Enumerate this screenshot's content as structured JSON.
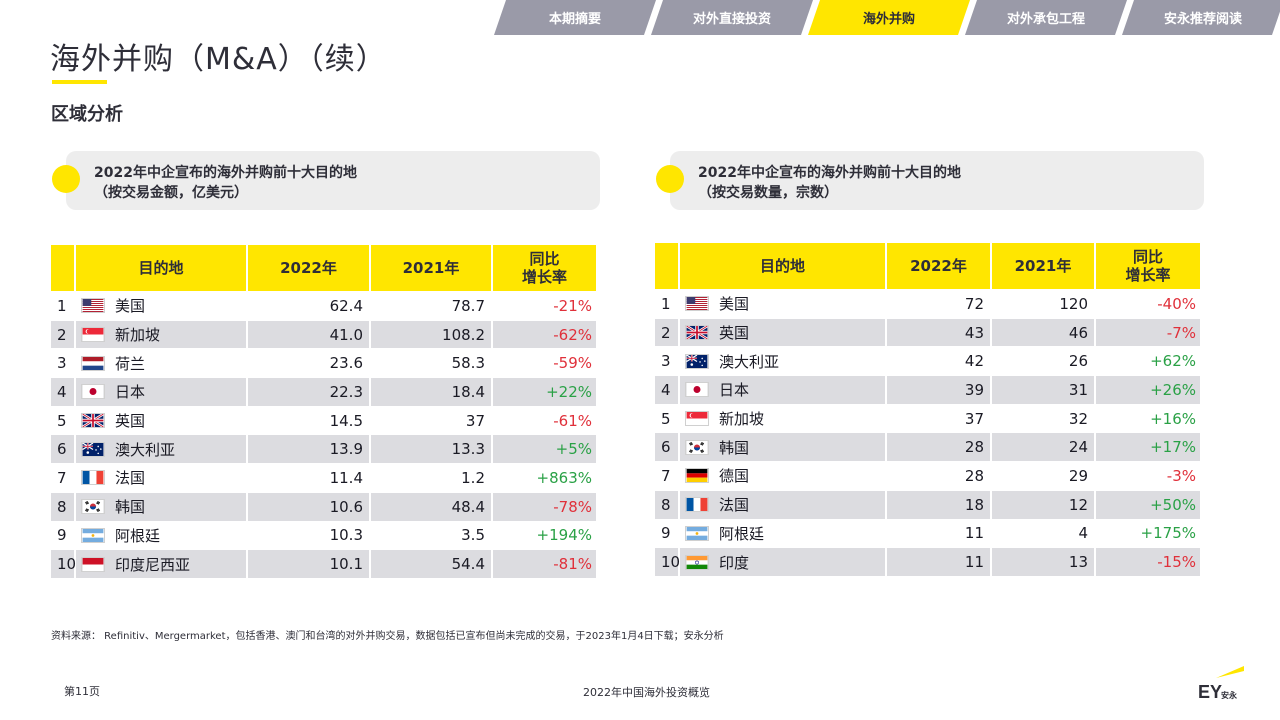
{
  "nav": {
    "tabs": [
      {
        "label": "本期摘要",
        "active": false
      },
      {
        "label": "对外直接投资",
        "active": false
      },
      {
        "label": "海外并购",
        "active": true
      },
      {
        "label": "对外承包工程",
        "active": false
      },
      {
        "label": "安永推荐阅读",
        "active": false
      }
    ]
  },
  "page": {
    "title": "海外并购（M&A）（续）",
    "section": "区域分析",
    "source": "资料来源： Refinitiv、Mergermarket，包括香港、澳门和台湾的对外并购交易，数据包括已宣布但尚未完成的交易，于2023年1月4日下载；安永分析",
    "page_number": "第11页",
    "footer_title": "2022年中国海外投资概览",
    "logo_text": "EY",
    "logo_subtext": "安永"
  },
  "colors": {
    "accent": "#ffe600",
    "positive": "#2aa146",
    "negative": "#e0303a",
    "row_alt": "#dcdce0"
  },
  "left": {
    "card_line1": "2022年中企宣布的海外并购前十大目的地",
    "card_line2": "（按交易金额，亿美元）",
    "headers": {
      "dest": "目的地",
      "y2022": "2022年",
      "y2021": "2021年",
      "growth_l1": "同比",
      "growth_l2": "增长率"
    },
    "rows": [
      {
        "rank": "1",
        "flag": "us",
        "name": "美国",
        "v2022": "62.4",
        "v2021": "78.7",
        "growth": "-21%"
      },
      {
        "rank": "2",
        "flag": "sg",
        "name": "新加坡",
        "v2022": "41.0",
        "v2021": "108.2",
        "growth": "-62%"
      },
      {
        "rank": "3",
        "flag": "nl",
        "name": "荷兰",
        "v2022": "23.6",
        "v2021": "58.3",
        "growth": "-59%"
      },
      {
        "rank": "4",
        "flag": "jp",
        "name": "日本",
        "v2022": "22.3",
        "v2021": "18.4",
        "growth": "+22%"
      },
      {
        "rank": "5",
        "flag": "gb",
        "name": "英国",
        "v2022": "14.5",
        "v2021": "37",
        "growth": "-61%"
      },
      {
        "rank": "6",
        "flag": "au",
        "name": "澳大利亚",
        "v2022": "13.9",
        "v2021": "13.3",
        "growth": "+5%"
      },
      {
        "rank": "7",
        "flag": "fr",
        "name": "法国",
        "v2022": "11.4",
        "v2021": "1.2",
        "growth": "+863%"
      },
      {
        "rank": "8",
        "flag": "kr",
        "name": "韩国",
        "v2022": "10.6",
        "v2021": "48.4",
        "growth": "-78%"
      },
      {
        "rank": "9",
        "flag": "ar",
        "name": "阿根廷",
        "v2022": "10.3",
        "v2021": "3.5",
        "growth": "+194%"
      },
      {
        "rank": "10",
        "flag": "id",
        "name": "印度尼西亚",
        "v2022": "10.1",
        "v2021": "54.4",
        "growth": "-81%"
      }
    ]
  },
  "right": {
    "card_line1": "2022年中企宣布的海外并购前十大目的地",
    "card_line2": "（按交易数量，宗数）",
    "headers": {
      "dest": "目的地",
      "y2022": "2022年",
      "y2021": "2021年",
      "growth_l1": "同比",
      "growth_l2": "增长率"
    },
    "rows": [
      {
        "rank": "1",
        "flag": "us",
        "name": "美国",
        "v2022": "72",
        "v2021": "120",
        "growth": "-40%"
      },
      {
        "rank": "2",
        "flag": "gb",
        "name": "英国",
        "v2022": "43",
        "v2021": "46",
        "growth": "-7%"
      },
      {
        "rank": "3",
        "flag": "au",
        "name": "澳大利亚",
        "v2022": "42",
        "v2021": "26",
        "growth": "+62%"
      },
      {
        "rank": "4",
        "flag": "jp",
        "name": "日本",
        "v2022": "39",
        "v2021": "31",
        "growth": "+26%"
      },
      {
        "rank": "5",
        "flag": "sg",
        "name": "新加坡",
        "v2022": "37",
        "v2021": "32",
        "growth": "+16%"
      },
      {
        "rank": "6",
        "flag": "kr",
        "name": "韩国",
        "v2022": "28",
        "v2021": "24",
        "growth": "+17%"
      },
      {
        "rank": "7",
        "flag": "de",
        "name": "德国",
        "v2022": "28",
        "v2021": "29",
        "growth": "-3%"
      },
      {
        "rank": "8",
        "flag": "fr",
        "name": "法国",
        "v2022": "18",
        "v2021": "12",
        "growth": "+50%"
      },
      {
        "rank": "9",
        "flag": "ar",
        "name": "阿根廷",
        "v2022": "11",
        "v2021": "4",
        "growth": "+175%"
      },
      {
        "rank": "10",
        "flag": "in",
        "name": "印度",
        "v2022": "11",
        "v2021": "13",
        "growth": "-15%"
      }
    ]
  }
}
